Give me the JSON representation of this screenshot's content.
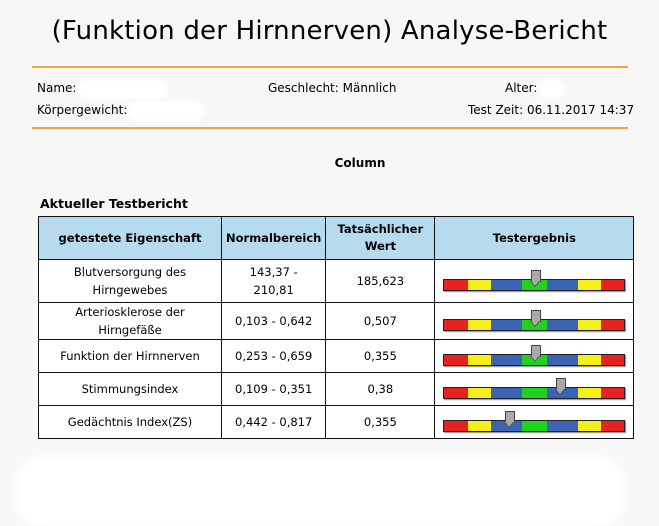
{
  "report": {
    "title": "(Funktion der Hirnnerven) Analyse-Bericht",
    "subtitle": "Column",
    "section_title": "Aktueller Testbericht"
  },
  "patient": {
    "name_label": "Name:",
    "gender_label": "Geschlecht:",
    "gender_value": "Männlich",
    "age_label": "Alter:",
    "weight_label": "Körpergewicht:",
    "test_time_label": "Test Zeit:",
    "test_time_value": "06.11.2017 14:37"
  },
  "table": {
    "headers": [
      "getestete Eigenschaft",
      "Normalbereich",
      "Tatsächlicher Wert",
      "Testergebnis"
    ],
    "header_wert_line1": "Tatsächlicher",
    "header_wert_line2": "Wert",
    "rows": [
      {
        "name": "Blutversorgung des Hirngewebes",
        "name_line1": "Blutversorgung des",
        "name_line2": "Hirngewebes",
        "range": "143,37 - 210,81",
        "range_line1": "143,37 -",
        "range_line2": "210,81",
        "value": "185,623",
        "indicator": 0.505
      },
      {
        "name": "Arteriosklerose der Hirngefäße",
        "range": "0,103 - 0,642",
        "value": "0,507",
        "indicator": 0.505
      },
      {
        "name": "Funktion der Hirnnerven",
        "range": "0,253 - 0,659",
        "value": "0,355",
        "indicator": 0.505
      },
      {
        "name": "Stimmungsindex",
        "range": "0,109 - 0,351",
        "value": "0,38",
        "indicator": 0.645
      },
      {
        "name": "Gedächtnis Index(ZS)",
        "range": "0,442 - 0,817",
        "value": "0,355",
        "indicator": 0.36
      }
    ]
  },
  "colors": {
    "accent_rule": "#f2a24a",
    "header_bg": "#b6dbee",
    "scale": [
      "#e8231f",
      "#f6ef1a",
      "#3b63b6",
      "#22d31e",
      "#3b63b6",
      "#f6ef1a",
      "#e8231f"
    ]
  }
}
